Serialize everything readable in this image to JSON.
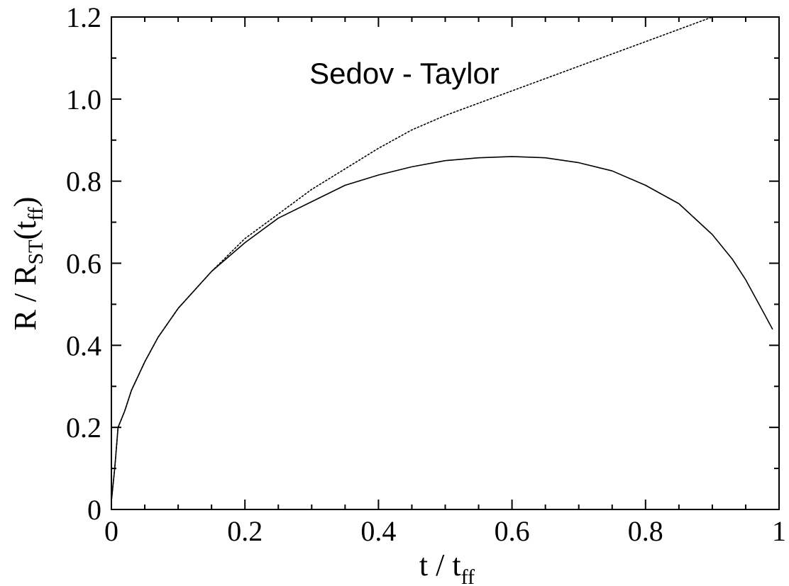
{
  "chart_data": {
    "type": "line",
    "xlim": [
      0,
      1
    ],
    "ylim": [
      0,
      1.2
    ],
    "x_ticks": [
      {
        "value": 0,
        "label": "0"
      },
      {
        "value": 0.2,
        "label": "0.2"
      },
      {
        "value": 0.4,
        "label": "0.4"
      },
      {
        "value": 0.6,
        "label": "0.6"
      },
      {
        "value": 0.8,
        "label": "0.8"
      },
      {
        "value": 1,
        "label": "1"
      }
    ],
    "y_ticks": [
      {
        "value": 0,
        "label": "0"
      },
      {
        "value": 0.2,
        "label": "0.2"
      },
      {
        "value": 0.4,
        "label": "0.4"
      },
      {
        "value": 0.6,
        "label": "0.6"
      },
      {
        "value": 0.8,
        "label": "0.8"
      },
      {
        "value": 1.0,
        "label": "1.0"
      },
      {
        "value": 1.2,
        "label": "1.2"
      }
    ],
    "xlabel": {
      "main": "t / t",
      "sub": "ff"
    },
    "ylabel": {
      "main": "R / R",
      "sub1": "ST",
      "mid": "(t",
      "sub2": "ff",
      "end": ")"
    },
    "annotation": "Sedov - Taylor",
    "grid": false,
    "series": [
      {
        "style": "solid",
        "color": "#000000",
        "x": [
          0.0,
          0.005,
          0.01,
          0.02,
          0.03,
          0.05,
          0.07,
          0.1,
          0.15,
          0.2,
          0.25,
          0.3,
          0.35,
          0.4,
          0.45,
          0.5,
          0.55,
          0.6,
          0.65,
          0.7,
          0.75,
          0.8,
          0.85,
          0.9,
          0.93,
          0.95,
          0.97,
          0.98,
          0.99
        ],
        "y": [
          0.02,
          0.1,
          0.2,
          0.24,
          0.29,
          0.36,
          0.42,
          0.49,
          0.58,
          0.65,
          0.71,
          0.75,
          0.79,
          0.815,
          0.835,
          0.85,
          0.857,
          0.86,
          0.857,
          0.845,
          0.825,
          0.79,
          0.745,
          0.67,
          0.61,
          0.56,
          0.5,
          0.47,
          0.44
        ]
      },
      {
        "style": "dotted",
        "color": "#000000",
        "x": [
          0.0,
          0.005,
          0.01,
          0.02,
          0.03,
          0.05,
          0.07,
          0.1,
          0.15,
          0.2,
          0.25,
          0.3,
          0.35,
          0.4,
          0.45,
          0.5,
          0.55,
          0.6,
          0.65,
          0.7,
          0.75,
          0.8,
          0.85,
          0.9
        ],
        "y": [
          0.02,
          0.1,
          0.2,
          0.24,
          0.29,
          0.36,
          0.42,
          0.49,
          0.58,
          0.66,
          0.72,
          0.78,
          0.83,
          0.88,
          0.925,
          0.96,
          0.99,
          1.02,
          1.05,
          1.08,
          1.11,
          1.14,
          1.17,
          1.2
        ]
      }
    ]
  }
}
